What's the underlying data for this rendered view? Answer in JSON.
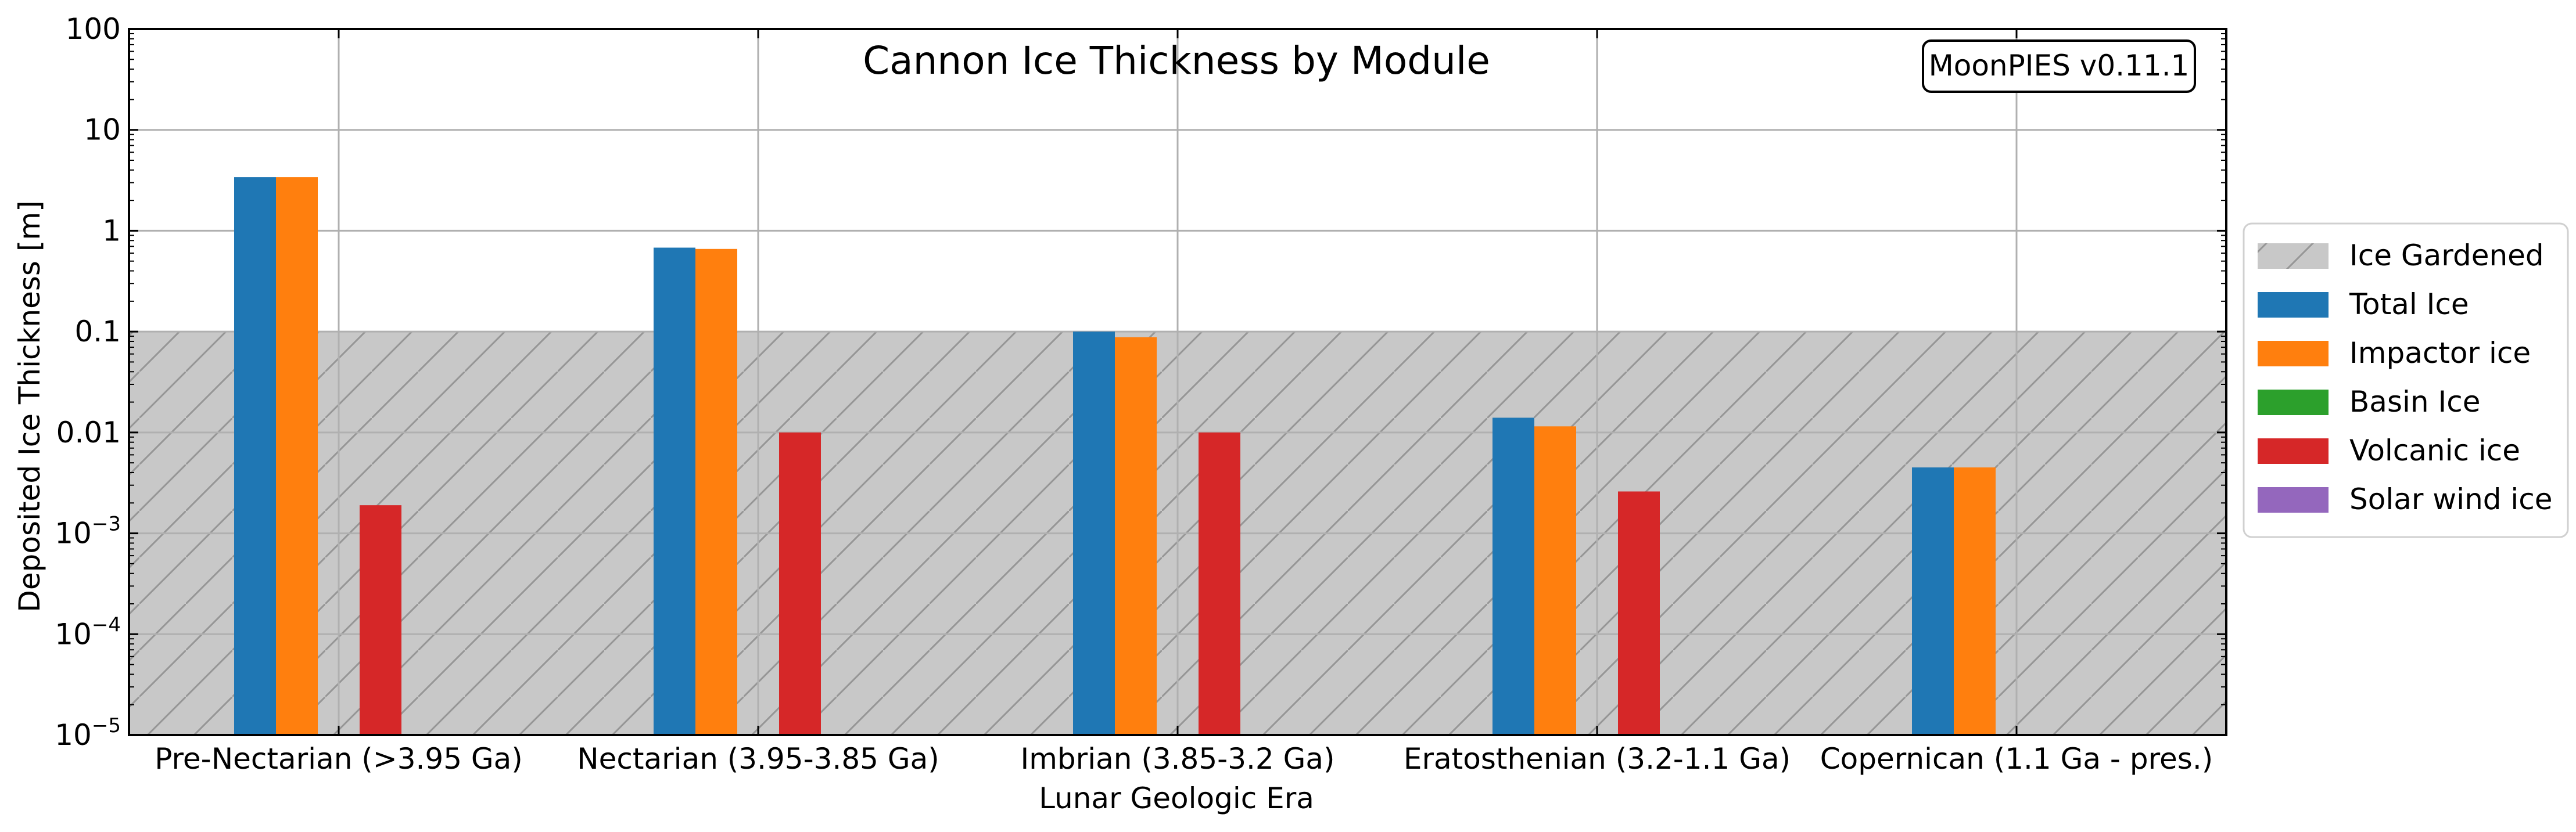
{
  "chart_data": {
    "type": "bar",
    "title": "Cannon Ice Thickness by Module",
    "badge": "MoonPIES v0.11.1",
    "xlabel": "Lunar Geologic Era",
    "ylabel": "Deposited Ice Thickness [m]",
    "yscale": "log",
    "ylim": [
      1e-05,
      100
    ],
    "yticks": [
      {
        "value": 100,
        "label": "100"
      },
      {
        "value": 10,
        "label": "10"
      },
      {
        "value": 1,
        "label": "1"
      },
      {
        "value": 0.1,
        "label": "0.1"
      },
      {
        "value": 0.01,
        "label": "0.01"
      },
      {
        "value": 0.001,
        "base": "10",
        "exp": "−3"
      },
      {
        "value": 0.0001,
        "base": "10",
        "exp": "−4"
      },
      {
        "value": 1e-05,
        "base": "10",
        "exp": "−5"
      }
    ],
    "grid": true,
    "categories": [
      "Pre-Nectarian (>3.95 Ga)",
      "Nectarian (3.95-3.85 Ga)",
      "Imbrian (3.85-3.2 Ga)",
      "Eratosthenian (3.2-1.1 Ga)",
      "Copernican (1.1 Ga - pres.)"
    ],
    "gardened_region": {
      "name": "Ice Gardened",
      "upper": 0.1,
      "color": "#c8c8c8"
    },
    "series": [
      {
        "name": "Total Ice",
        "color": "#1f77b4",
        "values": [
          3.4,
          0.68,
          0.1,
          0.014,
          0.0045
        ]
      },
      {
        "name": "Impactor ice",
        "color": "#ff7f0e",
        "values": [
          3.4,
          0.66,
          0.088,
          0.0115,
          0.0045
        ]
      },
      {
        "name": "Basin Ice",
        "color": "#2ca02c",
        "values": [
          0,
          0,
          0,
          0,
          0
        ]
      },
      {
        "name": "Volcanic ice",
        "color": "#d62728",
        "values": [
          0.0019,
          0.01,
          0.01,
          0.0026,
          0
        ]
      },
      {
        "name": "Solar wind ice",
        "color": "#9467bd",
        "values": [
          0,
          0,
          0,
          0,
          0
        ]
      }
    ],
    "legend_position": "right"
  }
}
